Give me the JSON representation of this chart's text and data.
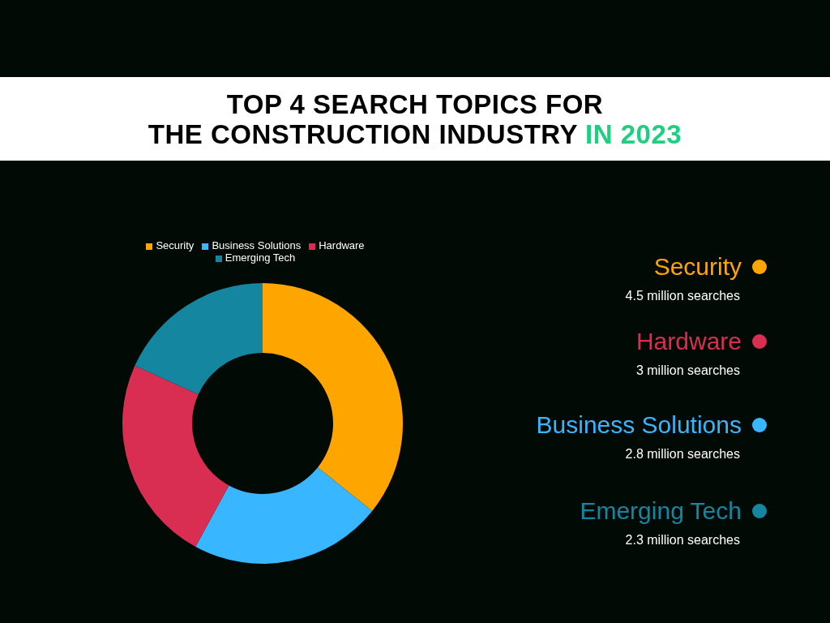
{
  "chart_data": {
    "type": "donut",
    "title": "TOP 4 SEARCH TOPICS FOR THE CONSTRUCTION INDUSTRY IN 2023",
    "categories": [
      "Security",
      "Business Solutions",
      "Hardware",
      "Emerging Tech"
    ],
    "values": [
      35.72,
      22.22,
      23.81,
      18.25
    ],
    "colors": [
      "#ffa500",
      "#38b6ff",
      "#d92e52",
      "#14869f"
    ],
    "annotations": [
      "4.5 million searches",
      "3 million searches",
      "2.8 million searches",
      "2.3 million searches"
    ],
    "legend": "top"
  }
}
